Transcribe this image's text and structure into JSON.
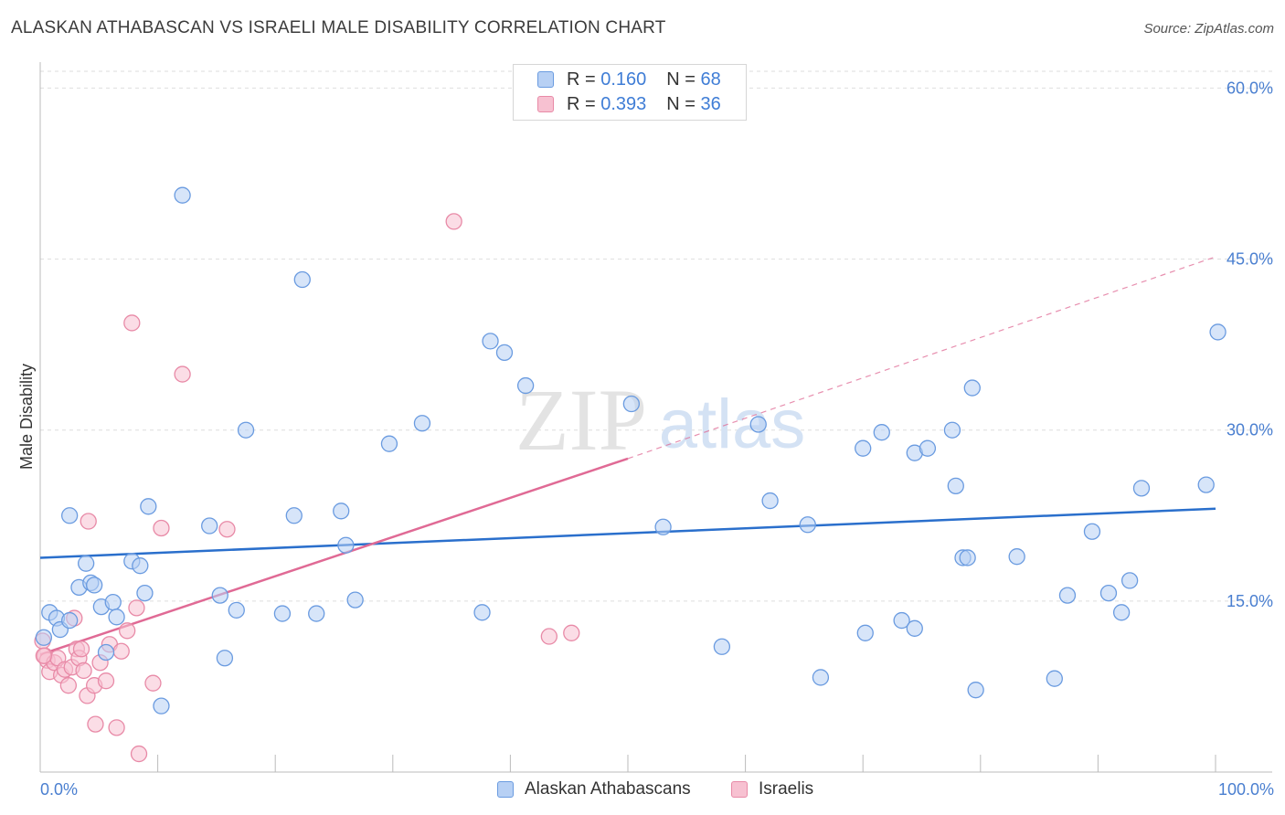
{
  "header": {
    "title": "ALASKAN ATHABASCAN VS ISRAELI MALE DISABILITY CORRELATION CHART",
    "source": "Source: ZipAtlas.com"
  },
  "watermark": {
    "zip": "ZIP",
    "atlas": "atlas"
  },
  "legend": {
    "r_label": "R =",
    "n_label": "N =",
    "rows": [
      {
        "r": "0.160",
        "n": "68"
      },
      {
        "r": "0.393",
        "n": "36"
      }
    ]
  },
  "colors": {
    "blue_fill": "#b7d0f4",
    "blue_stroke": "#6a9be0",
    "blue_line": "#2a6fcc",
    "pink_fill": "#f7c1d1",
    "pink_stroke": "#e88aa7",
    "pink_line": "#e06a95"
  },
  "chart_data": {
    "type": "scatter",
    "title": "ALASKAN ATHABASCAN VS ISRAELI MALE DISABILITY CORRELATION CHART",
    "xlabel": "",
    "ylabel": "Male Disability",
    "xlim": [
      0,
      100
    ],
    "ylim": [
      0,
      63
    ],
    "y_ticks": [
      15,
      30,
      45,
      60
    ],
    "y_tick_labels": [
      "15.0%",
      "30.0%",
      "45.0%",
      "60.0%"
    ],
    "x_tick_labels": [
      "0.0%",
      "100.0%"
    ],
    "legend_position": "top-center",
    "series": [
      {
        "name": "Alaskan Athabascans",
        "r": 0.16,
        "n": 68,
        "trend": {
          "x": [
            0,
            100
          ],
          "y": [
            18.8,
            23.1
          ]
        },
        "points": [
          {
            "x": 0.3,
            "y": 11.8
          },
          {
            "x": 0.8,
            "y": 14.0
          },
          {
            "x": 1.4,
            "y": 13.5
          },
          {
            "x": 1.7,
            "y": 12.5
          },
          {
            "x": 2.5,
            "y": 22.5
          },
          {
            "x": 2.5,
            "y": 13.3
          },
          {
            "x": 3.3,
            "y": 16.2
          },
          {
            "x": 3.9,
            "y": 18.3
          },
          {
            "x": 4.3,
            "y": 16.6
          },
          {
            "x": 4.6,
            "y": 16.4
          },
          {
            "x": 5.2,
            "y": 14.5
          },
          {
            "x": 5.6,
            "y": 10.5
          },
          {
            "x": 6.2,
            "y": 14.9
          },
          {
            "x": 6.5,
            "y": 13.6
          },
          {
            "x": 7.8,
            "y": 18.5
          },
          {
            "x": 8.5,
            "y": 18.1
          },
          {
            "x": 8.9,
            "y": 15.7
          },
          {
            "x": 9.2,
            "y": 23.3
          },
          {
            "x": 10.3,
            "y": 5.8
          },
          {
            "x": 12.1,
            "y": 50.6
          },
          {
            "x": 14.4,
            "y": 21.6
          },
          {
            "x": 15.3,
            "y": 15.5
          },
          {
            "x": 15.7,
            "y": 10.0
          },
          {
            "x": 16.7,
            "y": 14.2
          },
          {
            "x": 17.5,
            "y": 30.0
          },
          {
            "x": 20.6,
            "y": 13.9
          },
          {
            "x": 21.6,
            "y": 22.5
          },
          {
            "x": 22.3,
            "y": 43.2
          },
          {
            "x": 23.5,
            "y": 13.9
          },
          {
            "x": 25.6,
            "y": 22.9
          },
          {
            "x": 26.0,
            "y": 19.9
          },
          {
            "x": 26.8,
            "y": 15.1
          },
          {
            "x": 29.7,
            "y": 28.8
          },
          {
            "x": 32.5,
            "y": 30.6
          },
          {
            "x": 37.6,
            "y": 14.0
          },
          {
            "x": 38.3,
            "y": 37.8
          },
          {
            "x": 39.5,
            "y": 36.8
          },
          {
            "x": 41.3,
            "y": 33.9
          },
          {
            "x": 50.3,
            "y": 32.3
          },
          {
            "x": 53.0,
            "y": 21.5
          },
          {
            "x": 58.0,
            "y": 11.0
          },
          {
            "x": 61.1,
            "y": 30.5
          },
          {
            "x": 62.1,
            "y": 23.8
          },
          {
            "x": 65.3,
            "y": 21.7
          },
          {
            "x": 66.4,
            "y": 8.3
          },
          {
            "x": 70.0,
            "y": 28.4
          },
          {
            "x": 70.2,
            "y": 12.2
          },
          {
            "x": 71.6,
            "y": 29.8
          },
          {
            "x": 73.3,
            "y": 13.3
          },
          {
            "x": 74.4,
            "y": 12.6
          },
          {
            "x": 74.4,
            "y": 28.0
          },
          {
            "x": 75.5,
            "y": 28.4
          },
          {
            "x": 77.6,
            "y": 30.0
          },
          {
            "x": 77.9,
            "y": 25.1
          },
          {
            "x": 78.5,
            "y": 18.8
          },
          {
            "x": 78.9,
            "y": 18.8
          },
          {
            "x": 79.3,
            "y": 33.7
          },
          {
            "x": 79.6,
            "y": 7.2
          },
          {
            "x": 83.1,
            "y": 18.9
          },
          {
            "x": 86.3,
            "y": 8.2
          },
          {
            "x": 87.4,
            "y": 15.5
          },
          {
            "x": 89.5,
            "y": 21.1
          },
          {
            "x": 90.9,
            "y": 15.7
          },
          {
            "x": 92.0,
            "y": 14.0
          },
          {
            "x": 92.7,
            "y": 16.8
          },
          {
            "x": 93.7,
            "y": 24.9
          },
          {
            "x": 99.2,
            "y": 25.2
          },
          {
            "x": 100.2,
            "y": 38.6
          }
        ]
      },
      {
        "name": "Israelis",
        "r": 0.393,
        "n": 36,
        "trend": {
          "x": [
            0,
            50
          ],
          "y": [
            10.3,
            27.5
          ]
        },
        "trend_extension": {
          "x": [
            50,
            100
          ],
          "y": [
            27.5,
            45.2
          ]
        },
        "points": [
          {
            "x": 0.2,
            "y": 11.5
          },
          {
            "x": 0.4,
            "y": 10.2
          },
          {
            "x": 0.6,
            "y": 9.8
          },
          {
            "x": 0.8,
            "y": 8.8
          },
          {
            "x": 1.2,
            "y": 9.6
          },
          {
            "x": 1.5,
            "y": 10.0
          },
          {
            "x": 1.8,
            "y": 8.5
          },
          {
            "x": 2.1,
            "y": 9.0
          },
          {
            "x": 2.4,
            "y": 7.6
          },
          {
            "x": 2.7,
            "y": 9.2
          },
          {
            "x": 2.9,
            "y": 13.5
          },
          {
            "x": 3.1,
            "y": 10.8
          },
          {
            "x": 3.3,
            "y": 10.0
          },
          {
            "x": 3.5,
            "y": 10.8
          },
          {
            "x": 3.7,
            "y": 8.9
          },
          {
            "x": 4.0,
            "y": 6.7
          },
          {
            "x": 4.1,
            "y": 22.0
          },
          {
            "x": 4.6,
            "y": 7.6
          },
          {
            "x": 4.7,
            "y": 4.2
          },
          {
            "x": 5.1,
            "y": 9.6
          },
          {
            "x": 5.6,
            "y": 8.0
          },
          {
            "x": 5.9,
            "y": 11.2
          },
          {
            "x": 6.5,
            "y": 3.9
          },
          {
            "x": 6.9,
            "y": 10.6
          },
          {
            "x": 7.4,
            "y": 12.4
          },
          {
            "x": 7.8,
            "y": 39.4
          },
          {
            "x": 8.2,
            "y": 14.4
          },
          {
            "x": 8.4,
            "y": 1.6
          },
          {
            "x": 9.6,
            "y": 7.8
          },
          {
            "x": 10.3,
            "y": 21.4
          },
          {
            "x": 12.1,
            "y": 34.9
          },
          {
            "x": 15.9,
            "y": 21.3
          },
          {
            "x": 35.2,
            "y": 48.3
          },
          {
            "x": 43.3,
            "y": 11.9
          },
          {
            "x": 45.2,
            "y": 12.2
          },
          {
            "x": 0.3,
            "y": 10.2
          }
        ]
      }
    ]
  }
}
